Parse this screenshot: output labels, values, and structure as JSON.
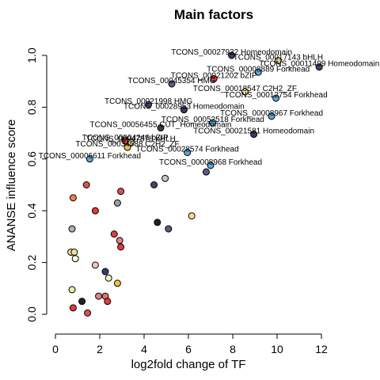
{
  "chart_data": {
    "type": "scatter",
    "title": "Main factors",
    "xlabel": "log2fold change of TF",
    "ylabel": "ANANSE influence score",
    "xlim": [
      0,
      12
    ],
    "ylim": [
      0,
      1
    ],
    "xticks": [
      "0",
      "2",
      "4",
      "6",
      "8",
      "10",
      "12"
    ],
    "yticks": [
      "0.0",
      "0.2",
      "0.4",
      "0.6",
      "0.8",
      "1.0"
    ],
    "grid": false,
    "legend": "none",
    "points": [
      {
        "x": 7.95,
        "y": 1.0,
        "color": "#3b3b5e",
        "label": "TCONS_00027932 Homeodomain"
      },
      {
        "x": 10.05,
        "y": 0.98,
        "color": "#f0e09a",
        "label": "TCONS_00017143 bHLH"
      },
      {
        "x": 11.9,
        "y": 0.955,
        "color": "#45456a",
        "label": "TCONS_00011499 Homeodomain"
      },
      {
        "x": 9.15,
        "y": 0.935,
        "color": "#5aaad8",
        "label": "TCONS_00008889 Forkhead"
      },
      {
        "x": 7.15,
        "y": 0.91,
        "color": "#e03c3c",
        "label": "TCONS_00021202 bZIP"
      },
      {
        "x": 5.25,
        "y": 0.89,
        "color": "#5a5a8a",
        "label": "TCONS_00045354 HMG"
      },
      {
        "x": 8.55,
        "y": 0.86,
        "color": "#f0e09a",
        "label": "TCONS_00018547 C2H2_ZF"
      },
      {
        "x": 9.95,
        "y": 0.835,
        "color": "#5aaad8",
        "label": "TCONS_00012754 Forkhead"
      },
      {
        "x": 4.2,
        "y": 0.81,
        "color": "#5a5a8a",
        "label": "TCONS_00021998 HMG"
      },
      {
        "x": 5.8,
        "y": 0.79,
        "color": "#3b3b5e",
        "label": "TCONS_00028953 Homeodomain"
      },
      {
        "x": 9.75,
        "y": 0.765,
        "color": "#5aaad8",
        "label": "TCONS_00008967 Forkhead"
      },
      {
        "x": 7.1,
        "y": 0.74,
        "color": "#5aaad8",
        "label": "TCONS_00052518 Forkhead"
      },
      {
        "x": 4.75,
        "y": 0.72,
        "color": "#3b3b5e",
        "label": "TCONS_00056455 CUT_Homeodomain"
      },
      {
        "x": 8.95,
        "y": 0.695,
        "color": "#3b3b5e",
        "label": "TCONS_00021581 Homeodomain"
      },
      {
        "x": 3.15,
        "y": 0.67,
        "color": "#e03c3c",
        "label": "TCONS_00004246 bZIP"
      },
      {
        "x": 3.4,
        "y": 0.665,
        "color": "#f0e09a",
        "label": "TCONS_00047878 bHLH"
      },
      {
        "x": 3.25,
        "y": 0.645,
        "color": "#f0c040",
        "label": "TCONS_00034588 C2H2_ZF"
      },
      {
        "x": 5.95,
        "y": 0.625,
        "color": "#5aaad8",
        "label": "TCONS_00028574 Forkhead"
      },
      {
        "x": 1.55,
        "y": 0.6,
        "color": "#5aaad8",
        "label": "TCONS_00006611 Forkhead"
      },
      {
        "x": 7.0,
        "y": 0.575,
        "color": "#5aaad8",
        "label": "TCONS_00008968 Forkhead"
      },
      {
        "x": 6.8,
        "y": 0.55,
        "color": "#5a5a8a",
        "label": ""
      },
      {
        "x": 4.95,
        "y": 0.525,
        "color": "#c8c8c8",
        "label": ""
      },
      {
        "x": 4.45,
        "y": 0.5,
        "color": "#45456a",
        "label": ""
      },
      {
        "x": 1.4,
        "y": 0.5,
        "color": "#e05050",
        "label": ""
      },
      {
        "x": 2.95,
        "y": 0.475,
        "color": "#e05050",
        "label": ""
      },
      {
        "x": 0.8,
        "y": 0.45,
        "color": "#f08050",
        "label": ""
      },
      {
        "x": 2.8,
        "y": 0.43,
        "color": "#a0a0a0",
        "label": ""
      },
      {
        "x": 1.8,
        "y": 0.4,
        "color": "#e03c3c",
        "label": ""
      },
      {
        "x": 6.15,
        "y": 0.38,
        "color": "#ffd890",
        "label": ""
      },
      {
        "x": 4.6,
        "y": 0.355,
        "color": "#222222",
        "label": ""
      },
      {
        "x": 0.75,
        "y": 0.33,
        "color": "#b0b0b0",
        "label": ""
      },
      {
        "x": 5.1,
        "y": 0.33,
        "color": "#5a5a8a",
        "label": ""
      },
      {
        "x": 2.65,
        "y": 0.31,
        "color": "#e03c3c",
        "label": ""
      },
      {
        "x": 2.9,
        "y": 0.285,
        "color": "#e08080",
        "label": ""
      },
      {
        "x": 2.95,
        "y": 0.26,
        "color": "#e03c3c",
        "label": ""
      },
      {
        "x": 0.7,
        "y": 0.24,
        "color": "#f0e09a",
        "label": ""
      },
      {
        "x": 0.85,
        "y": 0.24,
        "color": "#f0e09a",
        "label": ""
      },
      {
        "x": 0.9,
        "y": 0.215,
        "color": "#ffffe0",
        "label": ""
      },
      {
        "x": 1.8,
        "y": 0.19,
        "color": "#ffc0c0",
        "label": ""
      },
      {
        "x": 2.25,
        "y": 0.165,
        "color": "#3a3a70",
        "label": ""
      },
      {
        "x": 2.4,
        "y": 0.14,
        "color": "#f0f0c0",
        "label": ""
      },
      {
        "x": 2.8,
        "y": 0.12,
        "color": "#f0c040",
        "label": ""
      },
      {
        "x": 0.75,
        "y": 0.095,
        "color": "#f0f0a0",
        "label": ""
      },
      {
        "x": 1.95,
        "y": 0.07,
        "color": "#e08080",
        "label": ""
      },
      {
        "x": 2.25,
        "y": 0.07,
        "color": "#e07070",
        "label": ""
      },
      {
        "x": 1.2,
        "y": 0.05,
        "color": "#222222",
        "label": ""
      },
      {
        "x": 2.35,
        "y": 0.05,
        "color": "#e03c3c",
        "label": ""
      },
      {
        "x": 0.8,
        "y": 0.025,
        "color": "#e03c3c",
        "label": ""
      },
      {
        "x": 1.45,
        "y": 0.005,
        "color": "#e05050",
        "label": ""
      }
    ]
  }
}
